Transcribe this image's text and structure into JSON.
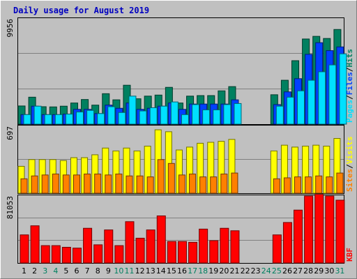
{
  "chart_data": {
    "type": "bar",
    "title": "Daily usage for August 2019",
    "x": [
      "1",
      "2",
      "3",
      "4",
      "5",
      "6",
      "7",
      "8",
      "9",
      "10",
      "11",
      "12",
      "13",
      "14",
      "15",
      "16",
      "17",
      "18",
      "19",
      "20",
      "21",
      "22",
      "23",
      "24",
      "25",
      "26",
      "27",
      "28",
      "29",
      "30",
      "31"
    ],
    "weekend_days": [
      "3",
      "4",
      "10",
      "11",
      "17",
      "18",
      "24",
      "25",
      "31"
    ],
    "panels": [
      {
        "name": "pages-files-hits",
        "ymax_label": "9956",
        "ymax": 9956,
        "legend": [
          "Pages",
          "/",
          "Files",
          "/",
          "Hits"
        ],
        "series": [
          {
            "name": "Hits",
            "color": "#008060",
            "values": [
              1720,
              2550,
              1650,
              1630,
              1700,
              2000,
              2330,
              1800,
              2880,
              2300,
              3680,
              2400,
              2650,
              2750,
              3480,
              2000,
              2650,
              2700,
              2700,
              3150,
              3550,
              0,
              0,
              0,
              2780,
              4150,
              6000,
              8050,
              8300,
              8100,
              8950
            ]
          },
          {
            "name": "Files",
            "color": "#0040ff",
            "values": [
              900,
              1700,
              900,
              900,
              950,
              1400,
              1400,
              1000,
              1800,
              1500,
              2000,
              1400,
              1500,
              1700,
              2000,
              1400,
              1900,
              1900,
              1900,
              1900,
              2300,
              0,
              0,
              0,
              1850,
              3050,
              4300,
              6600,
              7700,
              6950,
              7300
            ]
          },
          {
            "name": "Pages",
            "color": "#00e0ff",
            "values": [
              900,
              1700,
              900,
              900,
              950,
              1150,
              1300,
              1000,
              1650,
              1100,
              2650,
              1250,
              1550,
              1700,
              2100,
              900,
              1850,
              1350,
              1350,
              1850,
              1950,
              0,
              0,
              0,
              1700,
              2550,
              3150,
              4150,
              4950,
              5600,
              6650
            ]
          }
        ]
      },
      {
        "name": "visits-sites",
        "ymax_label": "697",
        "ymax": 697,
        "legend": [
          "Sites",
          "/",
          "Visits"
        ],
        "series": [
          {
            "name": "Visits",
            "color": "#ffff00",
            "values": [
              280,
              350,
              350,
              350,
              340,
              370,
              370,
              400,
              470,
              440,
              470,
              440,
              490,
              660,
              640,
              450,
              480,
              520,
              530,
              540,
              560,
              0,
              0,
              0,
              440,
              500,
              480,
              490,
              500,
              490,
              570
            ]
          },
          {
            "name": "Sites",
            "color": "#ff8000",
            "values": [
              150,
              180,
              190,
              200,
              190,
              190,
              200,
              200,
              190,
              200,
              180,
              180,
              170,
              350,
              310,
              190,
              200,
              170,
              170,
              200,
              210,
              0,
              0,
              0,
              150,
              160,
              170,
              170,
              180,
              170,
              210
            ]
          }
        ]
      },
      {
        "name": "kb",
        "ymax_label": "81053",
        "ymax": 81053,
        "legend": [
          "KB",
          "F"
        ],
        "series": [
          {
            "name": "KB F",
            "color": "#ff0000",
            "values": [
              34000,
              45000,
              21000,
              21000,
              19000,
              18000,
              42000,
              22000,
              40000,
              21000,
              50000,
              30000,
              40000,
              57000,
              26000,
              26000,
              25000,
              41000,
              27000,
              42000,
              39000,
              0,
              0,
              0,
              34000,
              49000,
              64000,
              81000,
              83000,
              81000,
              76000
            ]
          }
        ]
      }
    ]
  }
}
